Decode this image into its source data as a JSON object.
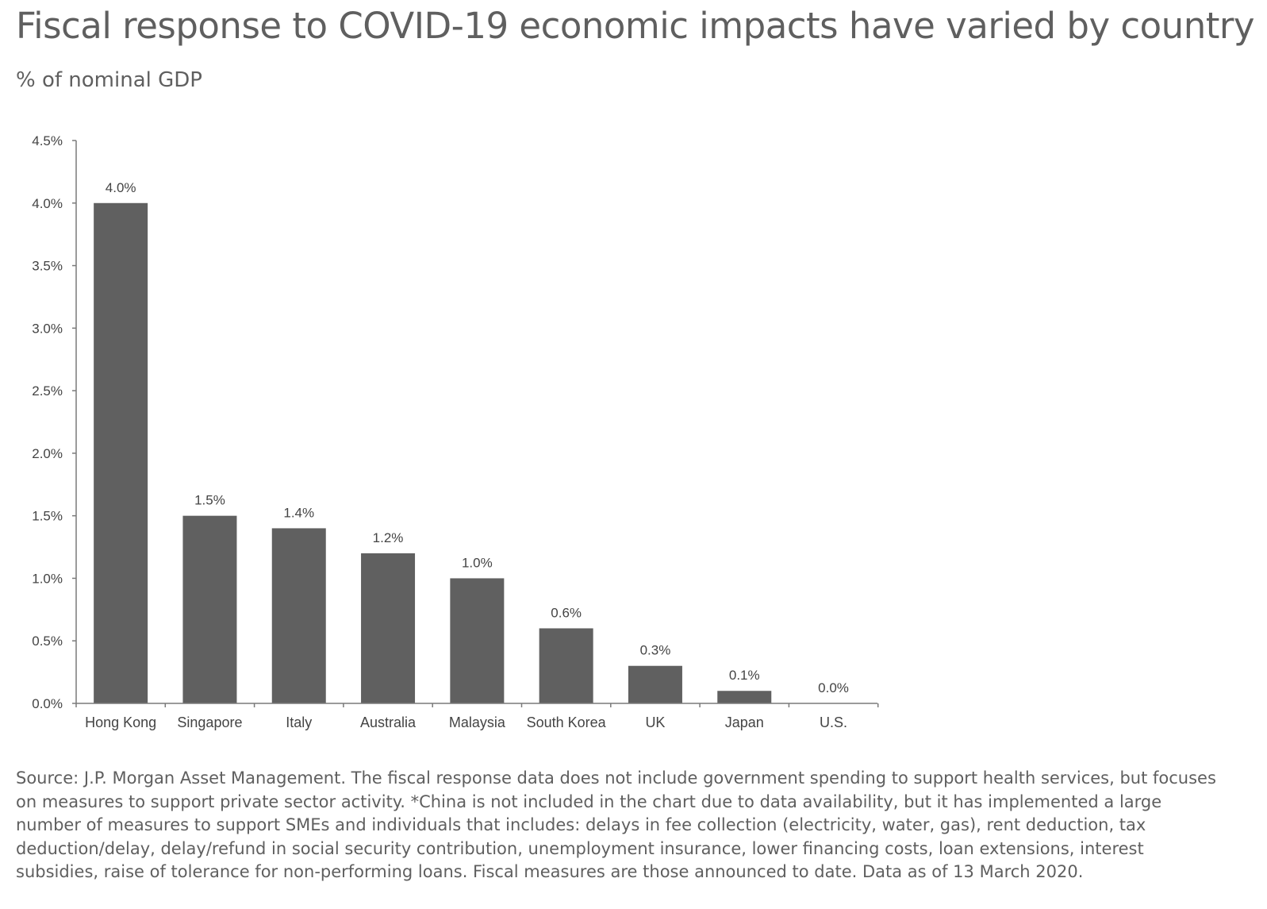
{
  "header": {
    "title": "Fiscal response to COVID-19 economic impacts have varied by country",
    "subtitle": "% of nominal GDP"
  },
  "footnote": "Source: J.P. Morgan Asset Management. The fiscal response data does not include government spending to support health services, but focuses on measures to support private sector activity. *China is not included in the chart due to data availability, but it has implemented a large number of measures to support SMEs and individuals that includes: delays in fee collection (electricity, water, gas), rent deduction, tax deduction/delay, delay/refund in social security contribution, unemployment insurance, lower financing costs, loan extensions, interest subsidies, raise of tolerance for non-performing loans. Fiscal measures are those announced to date. Data as of 13 March 2020.",
  "chart_data": {
    "type": "bar",
    "categories": [
      "Hong Kong",
      "Singapore",
      "Italy",
      "Australia",
      "Malaysia",
      "South Korea",
      "UK",
      "Japan",
      "U.S."
    ],
    "values": [
      4.0,
      1.5,
      1.4,
      1.2,
      1.0,
      0.6,
      0.3,
      0.1,
      0.0
    ],
    "value_labels": [
      "4.0%",
      "1.5%",
      "1.4%",
      "1.2%",
      "1.0%",
      "0.6%",
      "0.3%",
      "0.1%",
      "0.0%"
    ],
    "ylim": [
      0,
      4.5
    ],
    "yticks": [
      0,
      0.5,
      1.0,
      1.5,
      2.0,
      2.5,
      3.0,
      3.5,
      4.0,
      4.5
    ],
    "ytick_labels": [
      "0.0%",
      "0.5%",
      "1.0%",
      "1.5%",
      "2.0%",
      "2.5%",
      "3.0%",
      "3.5%",
      "4.0%",
      "4.5%"
    ],
    "grid": false,
    "legend": "none",
    "bar_color": "#606060",
    "axis_color": "#7a7a7a"
  }
}
